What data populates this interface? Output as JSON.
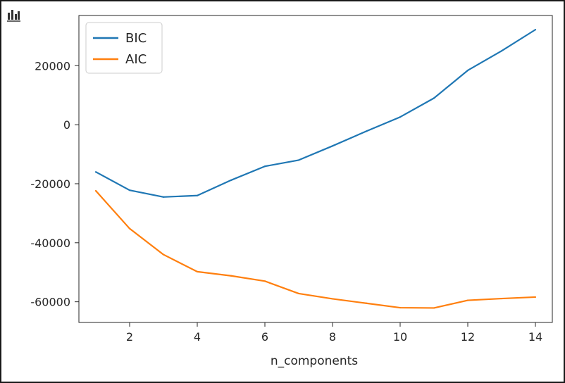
{
  "toolbar": {
    "icon": "bar-chart-icon"
  },
  "chart_data": {
    "type": "line",
    "xlabel": "n_components",
    "ylabel": "",
    "title": "",
    "xlim": [
      0.5,
      14.5
    ],
    "ylim": [
      -67000,
      37000
    ],
    "xticks": [
      2,
      4,
      6,
      8,
      10,
      12,
      14
    ],
    "yticks": [
      -60000,
      -40000,
      -20000,
      0,
      20000
    ],
    "grid": false,
    "legend_position": "top-left",
    "x": [
      1,
      2,
      3,
      4,
      5,
      6,
      7,
      8,
      9,
      10,
      11,
      12,
      13,
      14
    ],
    "series": [
      {
        "name": "BIC",
        "color": "#1f77b4",
        "values": [
          -16000,
          -22200,
          -24500,
          -24000,
          -18800,
          -14100,
          -12000,
          -7200,
          -2200,
          2600,
          9000,
          18400,
          25000,
          32200
        ]
      },
      {
        "name": "AIC",
        "color": "#ff7f0e",
        "values": [
          -22400,
          -35200,
          -44000,
          -49800,
          -51200,
          -53000,
          -57200,
          -59000,
          -60500,
          -62000,
          -62100,
          -59500,
          -58900,
          -58400
        ]
      }
    ]
  }
}
